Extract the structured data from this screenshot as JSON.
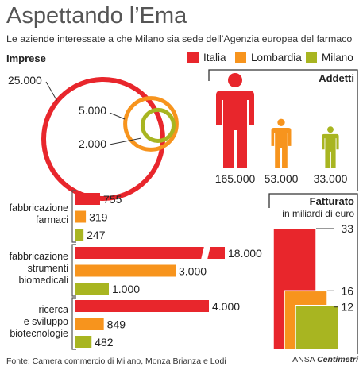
{
  "title": "Aspettando l’Ema",
  "subtitle": "Le aziende interessate a che Milano sia sede dell’Agenzia europea del farmaco",
  "colors": {
    "Italia": "#e8262c",
    "Lombardia": "#f7941d",
    "Milano": "#a8b521"
  },
  "legend": [
    "Italia",
    "Lombardia",
    "Milano"
  ],
  "sections": {
    "imprese": "Imprese",
    "addetti": "Addetti",
    "fatturato": "Fatturato",
    "fatturato_unit": "in miliardi di euro"
  },
  "footer": "Fonte: Camera commercio di Milano, Monza Brianza e Lodi",
  "credit": {
    "agency": "ANSA",
    "brand": "Centimetri"
  },
  "chart_data": [
    {
      "id": "imprese",
      "type": "bubble",
      "series": [
        {
          "name": "Italia",
          "value": 25000,
          "label": "25.000"
        },
        {
          "name": "Lombardia",
          "value": 5000,
          "label": "5.000"
        },
        {
          "name": "Milano",
          "value": 2000,
          "label": "2.000"
        }
      ]
    },
    {
      "id": "addetti",
      "type": "pictogram",
      "series": [
        {
          "name": "Italia",
          "value": 165000,
          "label": "165.000"
        },
        {
          "name": "Lombardia",
          "value": 53000,
          "label": "53.000"
        },
        {
          "name": "Milano",
          "value": 33000,
          "label": "33.000"
        }
      ]
    },
    {
      "id": "settori",
      "type": "bar",
      "categories": [
        {
          "name": "fabbricazione farmaci",
          "lines": [
            "fabbricazione",
            "farmaci"
          ],
          "values": [
            755,
            319,
            247
          ],
          "labels": [
            "755",
            "319",
            "247"
          ]
        },
        {
          "name": "fabbricazione strumenti biomedicali",
          "lines": [
            "fabbricazione",
            "strumenti",
            "biomedicali"
          ],
          "values": [
            18000,
            3000,
            1000
          ],
          "labels": [
            "18.000",
            "3.000",
            "1.000"
          ]
        },
        {
          "name": "ricerca e sviluppo biotecnologie",
          "lines": [
            "ricerca",
            "e sviluppo",
            "biotecnologie"
          ],
          "values": [
            4000,
            849,
            482
          ],
          "labels": [
            "4.000",
            "849",
            "482"
          ]
        }
      ],
      "series": [
        "Italia",
        "Lombardia",
        "Milano"
      ],
      "broken_axis": true
    },
    {
      "id": "fatturato",
      "type": "bar",
      "series": [
        {
          "name": "Italia",
          "value": 33,
          "label": "33"
        },
        {
          "name": "Lombardia",
          "value": 16,
          "label": "16"
        },
        {
          "name": "Milano",
          "value": 12,
          "label": "12"
        }
      ]
    }
  ]
}
